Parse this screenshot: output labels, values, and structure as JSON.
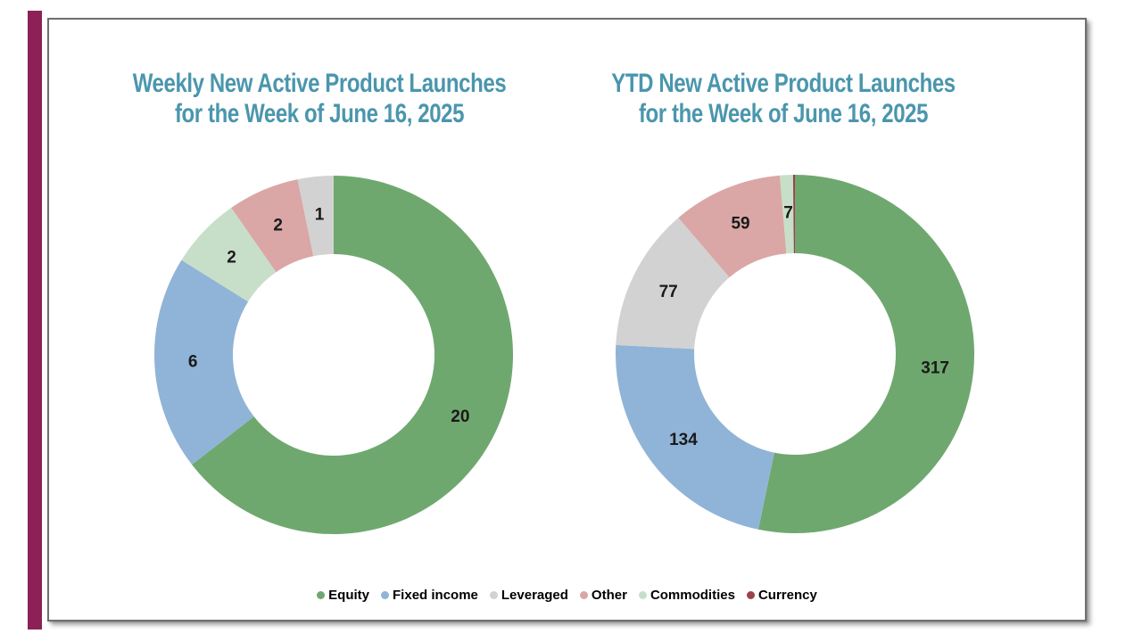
{
  "page": {
    "background": "#FFFFFF",
    "accent_bar_color": "#8B2157"
  },
  "charts": [
    {
      "title_line1": "Weekly New Active Product Launches",
      "title_line2": "for the Week of June 16, 2025"
    },
    {
      "title_line1": "YTD New Active Product Launches",
      "title_line2": "for the Week of June 16, 2025"
    }
  ],
  "chart_data": [
    {
      "type": "pie",
      "subtype": "donut",
      "title": "Weekly New Active Product Launches for the Week of June 16, 2025",
      "categories": [
        "Equity",
        "Fixed income",
        "Commodities",
        "Other",
        "Leveraged"
      ],
      "values": [
        20,
        6,
        2,
        2,
        1
      ],
      "colors": [
        "#6FA86F",
        "#90B4D7",
        "#C7DFC9",
        "#DBA6A6",
        "#D2D2D2"
      ],
      "value_labels": [
        "20",
        "6",
        "2",
        "2",
        "1"
      ],
      "total": 31,
      "start_angle_deg": 0,
      "direction": "clockwise",
      "donut_hole_ratio": 0.56,
      "legend_position": "bottom-shared"
    },
    {
      "type": "pie",
      "subtype": "donut",
      "title": "YTD New Active Product Launches for the Week of June 16, 2025",
      "categories": [
        "Equity",
        "Fixed income",
        "Leveraged",
        "Other",
        "Commodities",
        "Currency"
      ],
      "values": [
        317,
        134,
        77,
        59,
        7,
        1
      ],
      "colors": [
        "#6FA86F",
        "#90B4D7",
        "#D2D2D2",
        "#DBA6A6",
        "#C7DFC9",
        "#9A434D"
      ],
      "value_labels": [
        "317",
        "134",
        "77",
        "59",
        "7",
        ""
      ],
      "total": 595,
      "start_angle_deg": 0,
      "direction": "clockwise",
      "donut_hole_ratio": 0.56,
      "legend_position": "bottom-shared"
    }
  ],
  "legend": {
    "items": [
      {
        "label": "Equity",
        "color": "#6FA86F"
      },
      {
        "label": "Fixed income",
        "color": "#90B4D7"
      },
      {
        "label": "Leveraged",
        "color": "#D2D2D2"
      },
      {
        "label": "Other",
        "color": "#DBA6A6"
      },
      {
        "label": "Commodities",
        "color": "#C7DFC9"
      },
      {
        "label": "Currency",
        "color": "#9A434D"
      }
    ]
  },
  "styles": {
    "title_color": "#4A96AD",
    "value_label_color": "#1A1A1A",
    "legend_text_color": "#000000"
  }
}
